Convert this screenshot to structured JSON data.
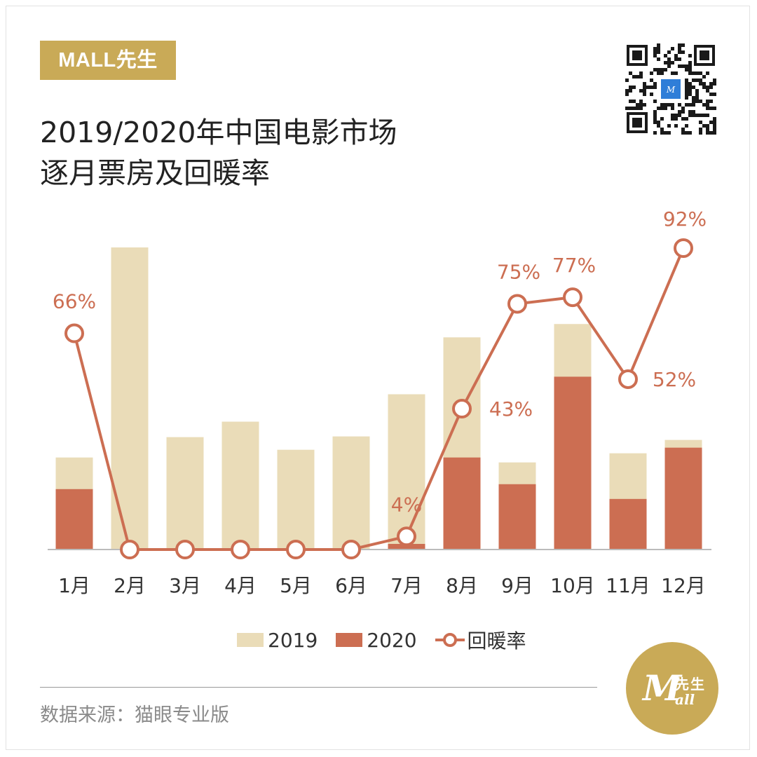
{
  "brand": {
    "tag": "MALL先生"
  },
  "title": {
    "line1": "2019/2020年中国电影市场",
    "line2": "逐月票房及回暖率"
  },
  "source": "数据来源：猫眼专业版",
  "logo": {
    "main": "M",
    "cn": "先生",
    "sub": "all"
  },
  "colors": {
    "bar_2019": "#eadcb8",
    "bar_2020": "#cc6e52",
    "line": "#cc6e52",
    "brand": "#c9aa57",
    "axis": "#bbbbbb"
  },
  "chart_data": {
    "type": "bar",
    "title": "2019/2020年中国电影市场逐月票房及回暖率",
    "categories": [
      "1月",
      "2月",
      "3月",
      "4月",
      "5月",
      "6月",
      "7月",
      "8月",
      "9月",
      "10月",
      "11月",
      "12月"
    ],
    "series": [
      {
        "name": "2019",
        "kind": "bar",
        "values": [
          131,
          430,
          160,
          182,
          142,
          161,
          221,
          302,
          124,
          321,
          137,
          156
        ]
      },
      {
        "name": "2020",
        "kind": "bar",
        "values": [
          86,
          0,
          0,
          0,
          0,
          0,
          8,
          131,
          93,
          246,
          72,
          145
        ]
      },
      {
        "name": "回暖率",
        "kind": "line",
        "values": [
          66,
          0,
          0,
          0,
          0,
          0,
          4,
          43,
          75,
          77,
          52,
          92
        ],
        "labels": [
          "66%",
          "",
          "",
          "",
          "",
          "",
          "4%",
          "43%",
          "75%",
          "77%",
          "52%",
          "92%"
        ]
      }
    ],
    "bar_ylim": [
      0,
      430
    ],
    "rate_ylim": [
      0,
      92
    ],
    "legend": [
      "2019",
      "2020",
      "回暖率"
    ],
    "legend_position": "bottom-center",
    "grid": false,
    "xlabel": "",
    "ylabel": ""
  }
}
